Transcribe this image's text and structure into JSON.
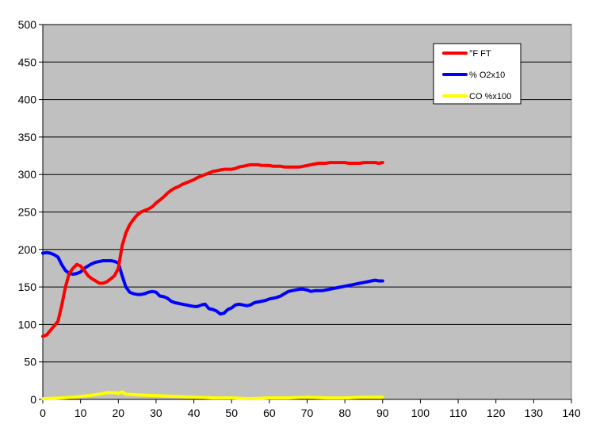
{
  "chart_data": {
    "type": "line",
    "title": "",
    "xlabel": "",
    "ylabel": "",
    "xlim": [
      0,
      140
    ],
    "ylim": [
      0,
      500
    ],
    "x_ticks": [
      0,
      10,
      20,
      30,
      40,
      50,
      60,
      70,
      80,
      90,
      100,
      110,
      120,
      130,
      140
    ],
    "y_ticks": [
      0,
      50,
      100,
      150,
      200,
      250,
      300,
      350,
      400,
      450,
      500
    ],
    "grid": "horizontal",
    "plot_background": "#c0c0c0",
    "legend_position": "top-right",
    "series": [
      {
        "name": "°F FT",
        "color": "#ff0000",
        "points": [
          [
            0,
            84
          ],
          [
            1,
            86
          ],
          [
            2,
            92
          ],
          [
            3,
            98
          ],
          [
            4,
            104
          ],
          [
            5,
            125
          ],
          [
            6,
            150
          ],
          [
            7,
            168
          ],
          [
            8,
            175
          ],
          [
            9,
            180
          ],
          [
            10,
            178
          ],
          [
            11,
            172
          ],
          [
            12,
            165
          ],
          [
            13,
            161
          ],
          [
            14,
            158
          ],
          [
            15,
            155
          ],
          [
            16,
            155
          ],
          [
            17,
            157
          ],
          [
            18,
            161
          ],
          [
            19,
            165
          ],
          [
            20,
            175
          ],
          [
            21,
            205
          ],
          [
            22,
            222
          ],
          [
            23,
            233
          ],
          [
            24,
            240
          ],
          [
            25,
            246
          ],
          [
            26,
            250
          ],
          [
            27,
            252
          ],
          [
            28,
            254
          ],
          [
            29,
            257
          ],
          [
            30,
            262
          ],
          [
            31,
            266
          ],
          [
            32,
            270
          ],
          [
            33,
            275
          ],
          [
            34,
            279
          ],
          [
            35,
            282
          ],
          [
            36,
            284
          ],
          [
            37,
            287
          ],
          [
            38,
            289
          ],
          [
            39,
            291
          ],
          [
            40,
            293
          ],
          [
            41,
            296
          ],
          [
            42,
            298
          ],
          [
            43,
            300
          ],
          [
            44,
            302
          ],
          [
            45,
            304
          ],
          [
            46,
            305
          ],
          [
            47,
            306
          ],
          [
            48,
            307
          ],
          [
            49,
            307
          ],
          [
            50,
            307
          ],
          [
            51,
            308
          ],
          [
            52,
            310
          ],
          [
            53,
            311
          ],
          [
            54,
            312
          ],
          [
            55,
            313
          ],
          [
            56,
            313
          ],
          [
            57,
            313
          ],
          [
            58,
            312
          ],
          [
            59,
            312
          ],
          [
            60,
            312
          ],
          [
            61,
            311
          ],
          [
            62,
            311
          ],
          [
            63,
            311
          ],
          [
            64,
            310
          ],
          [
            65,
            310
          ],
          [
            66,
            310
          ],
          [
            67,
            310
          ],
          [
            68,
            310
          ],
          [
            69,
            311
          ],
          [
            70,
            312
          ],
          [
            71,
            313
          ],
          [
            72,
            314
          ],
          [
            73,
            315
          ],
          [
            74,
            315
          ],
          [
            75,
            315
          ],
          [
            76,
            316
          ],
          [
            77,
            316
          ],
          [
            78,
            316
          ],
          [
            79,
            316
          ],
          [
            80,
            316
          ],
          [
            81,
            315
          ],
          [
            82,
            315
          ],
          [
            83,
            315
          ],
          [
            84,
            315
          ],
          [
            85,
            316
          ],
          [
            86,
            316
          ],
          [
            87,
            316
          ],
          [
            88,
            316
          ],
          [
            89,
            315
          ],
          [
            90,
            316
          ]
        ]
      },
      {
        "name": "% O2x10",
        "color": "#0000ff",
        "points": [
          [
            0,
            195
          ],
          [
            1,
            196
          ],
          [
            2,
            195
          ],
          [
            3,
            193
          ],
          [
            4,
            190
          ],
          [
            5,
            180
          ],
          [
            6,
            172
          ],
          [
            7,
            168
          ],
          [
            8,
            167
          ],
          [
            9,
            168
          ],
          [
            10,
            170
          ],
          [
            11,
            175
          ],
          [
            12,
            178
          ],
          [
            13,
            181
          ],
          [
            14,
            183
          ],
          [
            15,
            184
          ],
          [
            16,
            185
          ],
          [
            17,
            185
          ],
          [
            18,
            185
          ],
          [
            19,
            184
          ],
          [
            20,
            182
          ],
          [
            21,
            165
          ],
          [
            22,
            150
          ],
          [
            23,
            143
          ],
          [
            24,
            141
          ],
          [
            25,
            140
          ],
          [
            26,
            140
          ],
          [
            27,
            141
          ],
          [
            28,
            143
          ],
          [
            29,
            144
          ],
          [
            30,
            143
          ],
          [
            31,
            138
          ],
          [
            32,
            137
          ],
          [
            33,
            135
          ],
          [
            34,
            131
          ],
          [
            35,
            129
          ],
          [
            36,
            128
          ],
          [
            37,
            127
          ],
          [
            38,
            126
          ],
          [
            39,
            125
          ],
          [
            40,
            124
          ],
          [
            41,
            124
          ],
          [
            42,
            126
          ],
          [
            43,
            127
          ],
          [
            44,
            121
          ],
          [
            45,
            120
          ],
          [
            46,
            118
          ],
          [
            47,
            114
          ],
          [
            48,
            115
          ],
          [
            49,
            120
          ],
          [
            50,
            122
          ],
          [
            51,
            126
          ],
          [
            52,
            127
          ],
          [
            53,
            126
          ],
          [
            54,
            125
          ],
          [
            55,
            126
          ],
          [
            56,
            129
          ],
          [
            57,
            130
          ],
          [
            58,
            131
          ],
          [
            59,
            132
          ],
          [
            60,
            134
          ],
          [
            61,
            135
          ],
          [
            62,
            136
          ],
          [
            63,
            138
          ],
          [
            64,
            141
          ],
          [
            65,
            144
          ],
          [
            66,
            145
          ],
          [
            67,
            146
          ],
          [
            68,
            147
          ],
          [
            69,
            147
          ],
          [
            70,
            146
          ],
          [
            71,
            144
          ],
          [
            72,
            145
          ],
          [
            73,
            145
          ],
          [
            74,
            145
          ],
          [
            75,
            146
          ],
          [
            76,
            147
          ],
          [
            77,
            148
          ],
          [
            78,
            149
          ],
          [
            79,
            150
          ],
          [
            80,
            151
          ],
          [
            81,
            152
          ],
          [
            82,
            153
          ],
          [
            83,
            154
          ],
          [
            84,
            155
          ],
          [
            85,
            156
          ],
          [
            86,
            157
          ],
          [
            87,
            158
          ],
          [
            88,
            159
          ],
          [
            89,
            158
          ],
          [
            90,
            158
          ]
        ]
      },
      {
        "name": "CO %x100",
        "color": "#ffff00",
        "points": [
          [
            0,
            1
          ],
          [
            5,
            2
          ],
          [
            8,
            3
          ],
          [
            12,
            5
          ],
          [
            15,
            7
          ],
          [
            17,
            9
          ],
          [
            19,
            9
          ],
          [
            20,
            8
          ],
          [
            21,
            10
          ],
          [
            22,
            7
          ],
          [
            25,
            6
          ],
          [
            30,
            5
          ],
          [
            35,
            4
          ],
          [
            40,
            3
          ],
          [
            45,
            2
          ],
          [
            50,
            2
          ],
          [
            55,
            1
          ],
          [
            60,
            2
          ],
          [
            65,
            2
          ],
          [
            70,
            3
          ],
          [
            75,
            2
          ],
          [
            80,
            2
          ],
          [
            85,
            3
          ],
          [
            90,
            3
          ]
        ]
      }
    ]
  }
}
